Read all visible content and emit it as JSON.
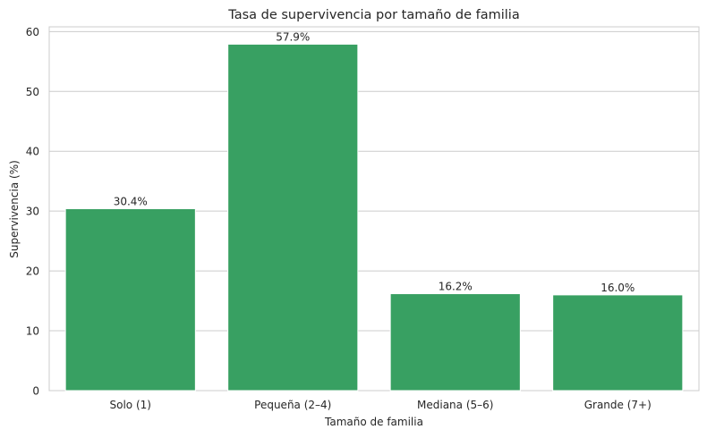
{
  "chart_data": {
    "type": "bar",
    "title": "Tasa de supervivencia por tamaño de familia",
    "xlabel": "Tamaño de familia",
    "ylabel": "Supervivencia (%)",
    "categories": [
      "Solo (1)",
      "Pequeña (2–4)",
      "Mediana (5–6)",
      "Grande (7+)"
    ],
    "values": [
      30.4,
      57.9,
      16.2,
      16.0
    ],
    "value_labels": [
      "30.4%",
      "57.9%",
      "16.2%",
      "16.0%"
    ],
    "ylim": [
      0,
      60.8
    ],
    "yticks": [
      0,
      10,
      20,
      30,
      40,
      50,
      60
    ],
    "grid": "horizontal",
    "bar_color": "#38a062"
  }
}
